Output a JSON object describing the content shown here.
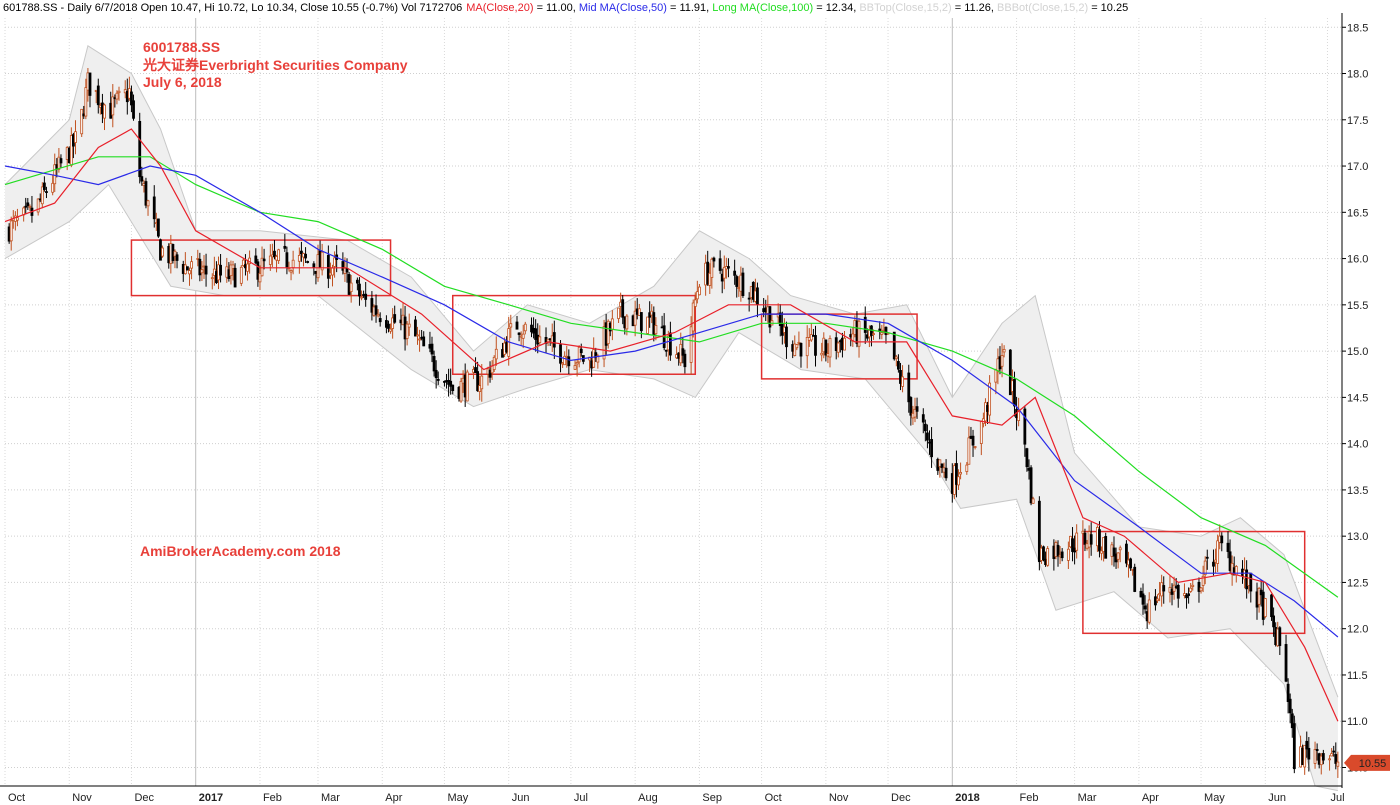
{
  "header": {
    "ticker": "601788.SS",
    "info": " - Daily 6/7/2018 Open 10.47, Hi 10.72, Lo 10.34, Close 10.55 (-0.7%) Vol 7172706",
    "ma20_label": "MA(Close,20)",
    "ma20_value": " = 11.00, ",
    "ma50_label": "Mid MA(Close,50)",
    "ma50_value": " = 11.91, ",
    "ma100_label": "Long MA(Close,100)",
    "ma100_value": " = 12.34, ",
    "bbtop_label": "BBTop(Close,15,2)",
    "bbtop_value": " = 11.26, ",
    "bbbot_label": "BBBot(Close,15,2)",
    "bbbot_value": " = 10.25"
  },
  "annotations": {
    "line1": "6001788.SS",
    "line2": "光大证券Everbright Securities Company",
    "line3": "July 6, 2018",
    "watermark": "AmiBrokerAcademy.com  2018"
  },
  "price_tag": "10.55",
  "colors": {
    "ma20": "#e8202a",
    "ma50": "#2a2ae8",
    "ma100": "#22dd22",
    "bb": "#c8c8c8",
    "bb_fill": "#efefef",
    "candle_up": "#c0501e",
    "candle_down": "#000000",
    "box": "#e03030",
    "annotation": "#e8403a",
    "price_tag": "#d94a2b"
  },
  "chart_data": {
    "type": "candlestick",
    "ylim": [
      10.3,
      18.6
    ],
    "y_ticks": [
      "10.5",
      "11.0",
      "11.5",
      "12.0",
      "12.5",
      "13.0",
      "13.5",
      "14.0",
      "14.5",
      "15.0",
      "15.5",
      "16.0",
      "16.5",
      "17.0",
      "17.5",
      "18.0",
      "18.5"
    ],
    "x_range": [
      "2016-10-01",
      "2018-07-08"
    ],
    "month_ticks": [
      {
        "date": "2016-10-01",
        "label": "Oct"
      },
      {
        "date": "2016-11-01",
        "label": "Nov"
      },
      {
        "date": "2016-12-01",
        "label": "Dec"
      },
      {
        "date": "2017-01-01",
        "label": "2017",
        "year": true
      },
      {
        "date": "2017-02-01",
        "label": "Feb"
      },
      {
        "date": "2017-03-01",
        "label": "Mar"
      },
      {
        "date": "2017-04-01",
        "label": "Apr"
      },
      {
        "date": "2017-05-01",
        "label": "May"
      },
      {
        "date": "2017-06-01",
        "label": "Jun"
      },
      {
        "date": "2017-07-01",
        "label": "Jul"
      },
      {
        "date": "2017-08-01",
        "label": "Aug"
      },
      {
        "date": "2017-09-01",
        "label": "Sep"
      },
      {
        "date": "2017-10-01",
        "label": "Oct"
      },
      {
        "date": "2017-11-01",
        "label": "Nov"
      },
      {
        "date": "2017-12-01",
        "label": "Dec"
      },
      {
        "date": "2018-01-01",
        "label": "2018",
        "year": true
      },
      {
        "date": "2018-02-01",
        "label": "Feb"
      },
      {
        "date": "2018-03-01",
        "label": "Mar"
      },
      {
        "date": "2018-04-01",
        "label": "Apr"
      },
      {
        "date": "2018-05-01",
        "label": "May"
      },
      {
        "date": "2018-06-01",
        "label": "Jun"
      },
      {
        "date": "2018-07-01",
        "label": "Jul"
      }
    ],
    "close_path": [
      [
        "2016-10-01",
        16.3
      ],
      [
        "2016-10-15",
        16.5
      ],
      [
        "2016-10-25",
        16.9
      ],
      [
        "2016-11-05",
        17.3
      ],
      [
        "2016-11-10",
        17.9
      ],
      [
        "2016-11-20",
        17.6
      ],
      [
        "2016-11-30",
        17.8
      ],
      [
        "2016-12-05",
        16.9
      ],
      [
        "2016-12-15",
        16.1
      ],
      [
        "2016-12-28",
        15.9
      ],
      [
        "2017-01-15",
        15.8
      ],
      [
        "2017-02-15",
        16.0
      ],
      [
        "2017-03-10",
        15.9
      ],
      [
        "2017-03-25",
        15.5
      ],
      [
        "2017-04-15",
        15.2
      ],
      [
        "2017-04-25",
        14.9
      ],
      [
        "2017-05-05",
        14.6
      ],
      [
        "2017-05-20",
        14.7
      ],
      [
        "2017-06-05",
        15.3
      ],
      [
        "2017-06-25",
        15.0
      ],
      [
        "2017-07-10",
        14.9
      ],
      [
        "2017-07-25",
        15.4
      ],
      [
        "2017-08-10",
        15.3
      ],
      [
        "2017-08-25",
        14.9
      ],
      [
        "2017-09-01",
        15.8
      ],
      [
        "2017-09-10",
        15.9
      ],
      [
        "2017-09-25",
        15.7
      ],
      [
        "2017-10-05",
        15.4
      ],
      [
        "2017-10-15",
        15.1
      ],
      [
        "2017-11-01",
        15.0
      ],
      [
        "2017-11-15",
        15.2
      ],
      [
        "2017-12-01",
        15.1
      ],
      [
        "2017-12-10",
        14.5
      ],
      [
        "2017-12-25",
        13.8
      ],
      [
        "2018-01-01",
        13.6
      ],
      [
        "2018-01-15",
        14.2
      ],
      [
        "2018-01-25",
        15.0
      ],
      [
        "2018-02-05",
        14.0
      ],
      [
        "2018-02-12",
        12.8
      ],
      [
        "2018-02-25",
        12.9
      ],
      [
        "2018-03-10",
        13.0
      ],
      [
        "2018-03-25",
        12.7
      ],
      [
        "2018-04-05",
        12.2
      ],
      [
        "2018-04-15",
        12.5
      ],
      [
        "2018-04-25",
        12.3
      ],
      [
        "2018-05-10",
        12.9
      ],
      [
        "2018-05-20",
        12.6
      ],
      [
        "2018-06-01",
        12.2
      ],
      [
        "2018-06-10",
        11.7
      ],
      [
        "2018-06-15",
        10.6
      ],
      [
        "2018-06-25",
        10.7
      ],
      [
        "2018-07-06",
        10.55
      ]
    ],
    "ma20": [
      [
        "2016-10-01",
        16.4
      ],
      [
        "2016-10-25",
        16.6
      ],
      [
        "2016-11-15",
        17.2
      ],
      [
        "2016-12-01",
        17.4
      ],
      [
        "2016-12-15",
        17.0
      ],
      [
        "2017-01-01",
        16.3
      ],
      [
        "2017-02-01",
        15.9
      ],
      [
        "2017-03-15",
        15.9
      ],
      [
        "2017-04-20",
        15.4
      ],
      [
        "2017-05-20",
        14.8
      ],
      [
        "2017-06-20",
        15.1
      ],
      [
        "2017-07-20",
        15.0
      ],
      [
        "2017-08-20",
        15.2
      ],
      [
        "2017-09-15",
        15.5
      ],
      [
        "2017-10-15",
        15.5
      ],
      [
        "2017-11-15",
        15.1
      ],
      [
        "2017-12-10",
        15.1
      ],
      [
        "2018-01-01",
        14.3
      ],
      [
        "2018-01-25",
        14.2
      ],
      [
        "2018-02-10",
        14.5
      ],
      [
        "2018-03-05",
        13.2
      ],
      [
        "2018-03-25",
        13.0
      ],
      [
        "2018-04-20",
        12.5
      ],
      [
        "2018-05-15",
        12.6
      ],
      [
        "2018-06-01",
        12.5
      ],
      [
        "2018-06-20",
        11.8
      ],
      [
        "2018-07-06",
        11.0
      ]
    ],
    "ma50": [
      [
        "2016-10-01",
        17.0
      ],
      [
        "2016-10-25",
        16.9
      ],
      [
        "2016-11-15",
        16.8
      ],
      [
        "2016-12-10",
        17.0
      ],
      [
        "2017-01-01",
        16.9
      ],
      [
        "2017-02-01",
        16.5
      ],
      [
        "2017-03-01",
        16.1
      ],
      [
        "2017-04-01",
        15.8
      ],
      [
        "2017-05-01",
        15.5
      ],
      [
        "2017-06-01",
        15.1
      ],
      [
        "2017-07-01",
        14.9
      ],
      [
        "2017-08-01",
        15.0
      ],
      [
        "2017-09-01",
        15.2
      ],
      [
        "2017-10-01",
        15.4
      ],
      [
        "2017-11-01",
        15.4
      ],
      [
        "2017-12-01",
        15.3
      ],
      [
        "2018-01-01",
        14.9
      ],
      [
        "2018-02-01",
        14.4
      ],
      [
        "2018-03-01",
        13.6
      ],
      [
        "2018-04-01",
        13.1
      ],
      [
        "2018-05-01",
        12.6
      ],
      [
        "2018-05-25",
        12.6
      ],
      [
        "2018-06-15",
        12.3
      ],
      [
        "2018-07-06",
        11.91
      ]
    ],
    "ma100": [
      [
        "2016-10-01",
        16.8
      ],
      [
        "2016-11-15",
        17.1
      ],
      [
        "2016-12-10",
        17.1
      ],
      [
        "2017-01-01",
        16.8
      ],
      [
        "2017-02-01",
        16.5
      ],
      [
        "2017-03-01",
        16.4
      ],
      [
        "2017-04-01",
        16.1
      ],
      [
        "2017-05-01",
        15.7
      ],
      [
        "2017-06-01",
        15.5
      ],
      [
        "2017-07-01",
        15.3
      ],
      [
        "2017-08-01",
        15.2
      ],
      [
        "2017-09-01",
        15.1
      ],
      [
        "2017-10-01",
        15.3
      ],
      [
        "2017-11-01",
        15.3
      ],
      [
        "2017-12-01",
        15.2
      ],
      [
        "2018-01-01",
        15.0
      ],
      [
        "2018-02-01",
        14.7
      ],
      [
        "2018-03-01",
        14.3
      ],
      [
        "2018-04-01",
        13.7
      ],
      [
        "2018-05-01",
        13.2
      ],
      [
        "2018-06-01",
        12.9
      ],
      [
        "2018-07-06",
        12.34
      ]
    ],
    "bb_upper": [
      [
        "2016-10-01",
        16.8
      ],
      [
        "2016-11-01",
        17.5
      ],
      [
        "2016-11-10",
        18.3
      ],
      [
        "2016-12-01",
        18.0
      ],
      [
        "2016-12-15",
        17.4
      ],
      [
        "2017-01-01",
        16.3
      ],
      [
        "2017-02-01",
        16.3
      ],
      [
        "2017-03-15",
        16.2
      ],
      [
        "2017-04-15",
        15.8
      ],
      [
        "2017-05-15",
        15.0
      ],
      [
        "2017-06-10",
        15.5
      ],
      [
        "2017-07-10",
        15.3
      ],
      [
        "2017-08-10",
        15.7
      ],
      [
        "2017-09-01",
        16.3
      ],
      [
        "2017-09-25",
        16.0
      ],
      [
        "2017-10-15",
        15.6
      ],
      [
        "2017-11-15",
        15.4
      ],
      [
        "2017-12-10",
        15.5
      ],
      [
        "2018-01-01",
        14.5
      ],
      [
        "2018-01-25",
        15.3
      ],
      [
        "2018-02-10",
        15.6
      ],
      [
        "2018-03-01",
        13.9
      ],
      [
        "2018-04-01",
        13.1
      ],
      [
        "2018-05-01",
        13.0
      ],
      [
        "2018-05-20",
        13.2
      ],
      [
        "2018-06-10",
        12.8
      ],
      [
        "2018-07-06",
        11.26
      ]
    ],
    "bb_lower": [
      [
        "2016-10-01",
        16.0
      ],
      [
        "2016-11-01",
        16.4
      ],
      [
        "2016-11-20",
        16.8
      ],
      [
        "2016-12-20",
        15.7
      ],
      [
        "2017-01-15",
        15.6
      ],
      [
        "2017-03-01",
        15.6
      ],
      [
        "2017-04-15",
        14.8
      ],
      [
        "2017-05-15",
        14.4
      ],
      [
        "2017-06-10",
        14.6
      ],
      [
        "2017-07-10",
        14.8
      ],
      [
        "2017-08-10",
        14.7
      ],
      [
        "2017-08-30",
        14.5
      ],
      [
        "2017-09-20",
        15.2
      ],
      [
        "2017-10-20",
        14.8
      ],
      [
        "2017-11-20",
        14.7
      ],
      [
        "2017-12-20",
        13.9
      ],
      [
        "2018-01-05",
        13.3
      ],
      [
        "2018-02-01",
        13.4
      ],
      [
        "2018-02-20",
        12.2
      ],
      [
        "2018-03-20",
        12.4
      ],
      [
        "2018-04-15",
        11.9
      ],
      [
        "2018-05-15",
        12.0
      ],
      [
        "2018-06-10",
        11.4
      ],
      [
        "2018-06-25",
        10.3
      ],
      [
        "2018-07-06",
        10.25
      ]
    ],
    "boxes": [
      {
        "from": "2016-12-01",
        "to": "2017-04-05",
        "low": 15.6,
        "high": 16.2
      },
      {
        "from": "2017-05-05",
        "to": "2017-08-30",
        "low": 14.75,
        "high": 15.6
      },
      {
        "from": "2017-10-01",
        "to": "2017-12-15",
        "low": 14.7,
        "high": 15.4
      },
      {
        "from": "2018-03-05",
        "to": "2018-06-20",
        "low": 11.95,
        "high": 13.05
      }
    ],
    "last_close": 10.55
  }
}
